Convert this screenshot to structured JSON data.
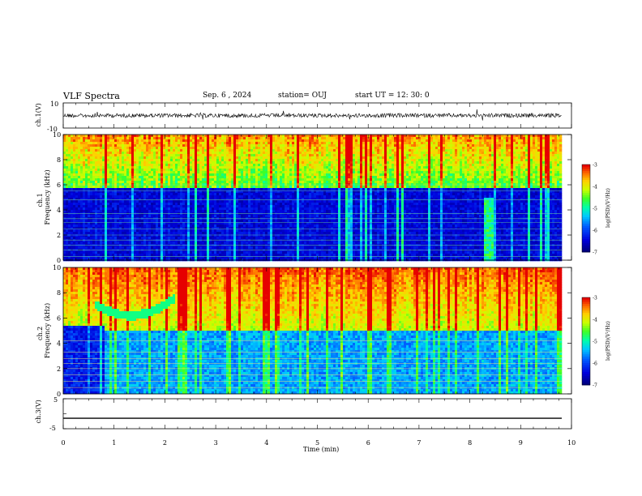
{
  "header": {
    "title": "VLF Spectra",
    "date": "Sep. 6 , 2024",
    "station": "station= OUJ",
    "start": "start  UT =   12: 30: 0"
  },
  "chart_data": [
    {
      "type": "line",
      "panel": "ch1-waveform",
      "ylabel": "ch.1(V)",
      "yticks": [
        "10",
        "-10"
      ],
      "ylim": [
        -10,
        10
      ],
      "description_series": [
        {
          "values_approx": "noise around ~0 V"
        }
      ]
    },
    {
      "type": "heatmap",
      "panel": "ch1-spectrogram",
      "ylabel": "ch.1  Frequency (kHz)",
      "ylim": [
        0,
        10
      ],
      "yticks": [
        "0",
        "2",
        "4",
        "6",
        "8",
        "10"
      ],
      "colorbar": {
        "label": "log(PSD)(V²/Hz)",
        "ticks": [
          "-3",
          "-4",
          "-5",
          "-6",
          "-7"
        ],
        "range": [
          -7,
          -3
        ]
      },
      "features": {
        "low_band_top_khz": 5.7,
        "emission": "broadband above ~5.5 kHz",
        "hiss_dip_khz": 6.0
      }
    },
    {
      "type": "heatmap",
      "panel": "ch2-spectrogram",
      "ylabel": "ch.2  Frequency (kHz)",
      "ylim": [
        0,
        10
      ],
      "yticks": [
        "0",
        "2",
        "4",
        "6",
        "8",
        "10"
      ],
      "colorbar": {
        "label": "log(PSD)(V²/Hz)",
        "ticks": [
          "-3",
          "-4",
          "-5",
          "-6",
          "-7"
        ],
        "range": [
          -7,
          -3
        ]
      },
      "features": {
        "low_band_top_khz": 5.0,
        "emission": "strong above ~5 kHz"
      }
    },
    {
      "type": "line",
      "panel": "ch3-waveform",
      "ylabel": "ch.3(V)",
      "yticks": [
        "5",
        "0",
        "-5"
      ],
      "ylim": [
        -5,
        5
      ],
      "series": [
        {
          "values_approx": "constant ~ -1.5 V"
        }
      ]
    }
  ],
  "xaxis": {
    "label": "Time  (min)",
    "ticks": [
      "0",
      "1",
      "2",
      "3",
      "4",
      "5",
      "6",
      "7",
      "8",
      "9",
      "10"
    ],
    "xlim": [
      0,
      10
    ]
  },
  "colors": {
    "dark_blue": "#00008b",
    "blue": "#0033ff",
    "cyan": "#00ccff",
    "green": "#00ff66",
    "yellow": "#ffff00",
    "orange": "#ff8800",
    "red": "#ff0000"
  }
}
